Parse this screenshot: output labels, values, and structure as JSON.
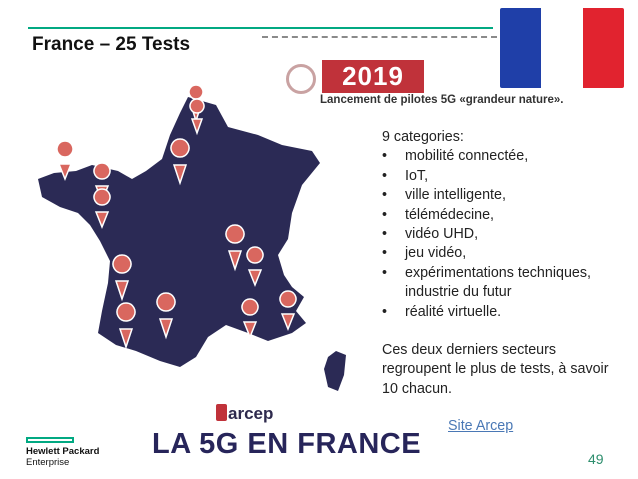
{
  "slide": {
    "title": "France – 25 Tests",
    "page_number": "49"
  },
  "flag": {
    "colors": [
      "#1f3fa8",
      "#ffffff",
      "#e1232f"
    ]
  },
  "banner": {
    "year": "2019",
    "subtitle": "Lancement de pilotes 5G «grandeur nature»."
  },
  "content": {
    "heading": "9 categories:",
    "items": [
      "mobilité connectée,",
      "IoT,",
      "ville intelligente,",
      "télémédecine,",
      "vidéo UHD,",
      "jeu vidéo,",
      "expérimentations techniques, industrie du futur",
      "réalité virtuelle."
    ],
    "paragraph": "Ces deux derniers secteurs regroupent le plus de tests, à savoir 10 chacun.",
    "link_label": "Site Arcep"
  },
  "map": {
    "region_color": "#2b2a55",
    "pin_color": "#d9675f",
    "label_arcep": "arcep",
    "footer_title": "LA 5G EN FRANCE"
  },
  "brand": {
    "line1": "Hewlett Packard",
    "line2": "Enterprise",
    "accent": "#01a982"
  }
}
